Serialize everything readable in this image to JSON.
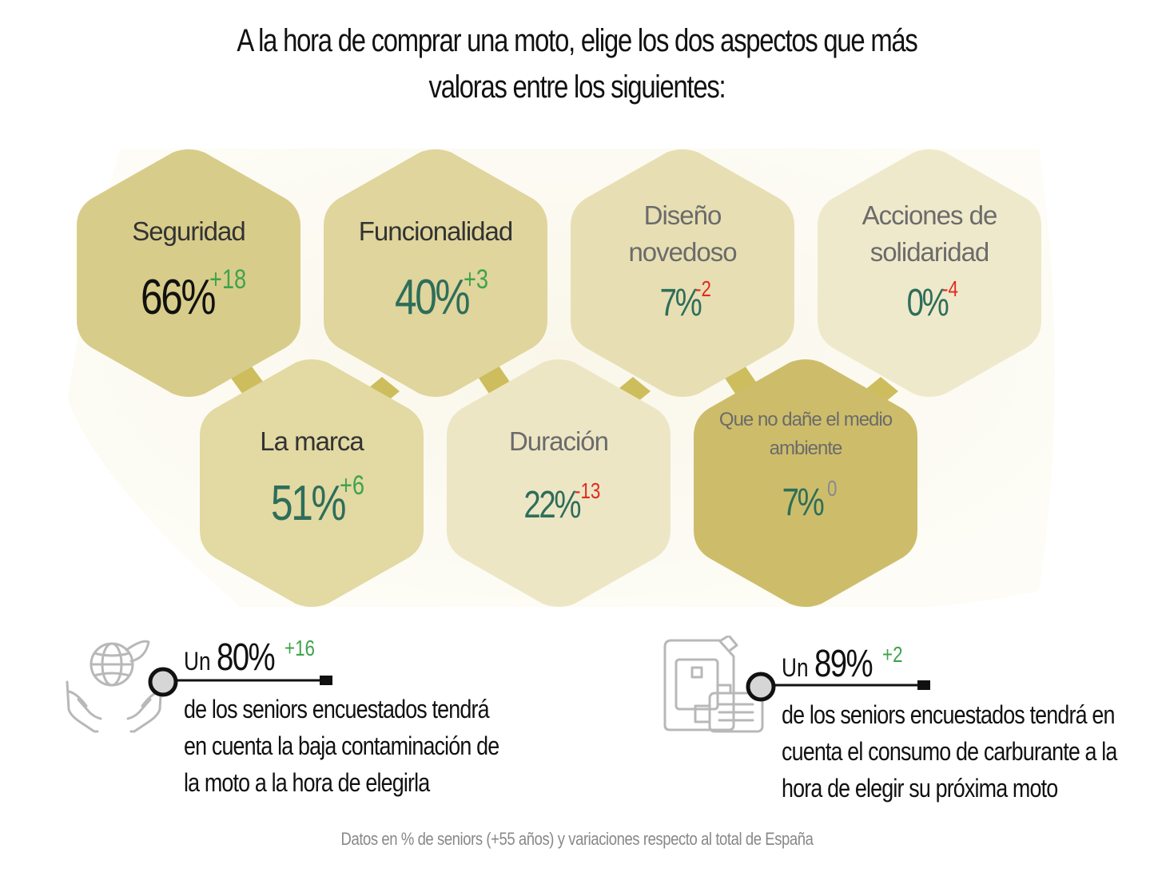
{
  "title": {
    "line1": "A la hora de comprar una moto, elige los dos aspectos que más",
    "line2": "valoras entre los siguientes:"
  },
  "colors": {
    "hex_dark": "#d4c782",
    "hex_mid": "#e0d69e",
    "hex_light": "#eee7c7",
    "hex_gold": "#cdbd6a",
    "connector": "#cdbd5d",
    "value_green": "#2e6e5a",
    "value_black": "#111111",
    "delta_positive": "#3fa34d",
    "delta_negative": "#e02a20",
    "delta_zero": "#8a8a8a",
    "label_dark": "#333333",
    "label_gray": "#6b6b6b"
  },
  "hexagons": [
    {
      "label": "Seguridad",
      "value": "66%",
      "delta": "+18"
    },
    {
      "label": "Funcionalidad",
      "value": "40%",
      "delta": "+3"
    },
    {
      "label_line1": "Diseño",
      "label_line2": "novedoso",
      "value": "7%",
      "delta": "-2"
    },
    {
      "label_line1": "Acciones de",
      "label_line2": "solidaridad",
      "value": "0%",
      "delta": "-4"
    },
    {
      "label": "La marca",
      "value": "51%",
      "delta": "+6"
    },
    {
      "label": "Duración",
      "value": "22%",
      "delta": "-13"
    },
    {
      "label_line1": "Que no dañe el medio",
      "label_line2": "ambiente",
      "value": "7%",
      "delta": "0"
    }
  ],
  "stats": [
    {
      "icon": "globe-in-hands-icon",
      "prefix": "Un",
      "value": "80%",
      "delta": "+16",
      "line1": "de los seniors encuestados tendrá",
      "line2": "en cuenta la baja contaminación de",
      "line3": "la moto a la hora de elegirla"
    },
    {
      "icon": "fuel-can-engine-icon",
      "prefix": "Un",
      "value": "89%",
      "delta": "+2",
      "line1": "de los seniors encuestados tendrá en",
      "line2": "cuenta el consumo de carburante a la",
      "line3": "hora de elegir su próxima moto"
    }
  ],
  "footnote": "Datos en % de seniors (+55 años) y variaciones respecto al total de España"
}
